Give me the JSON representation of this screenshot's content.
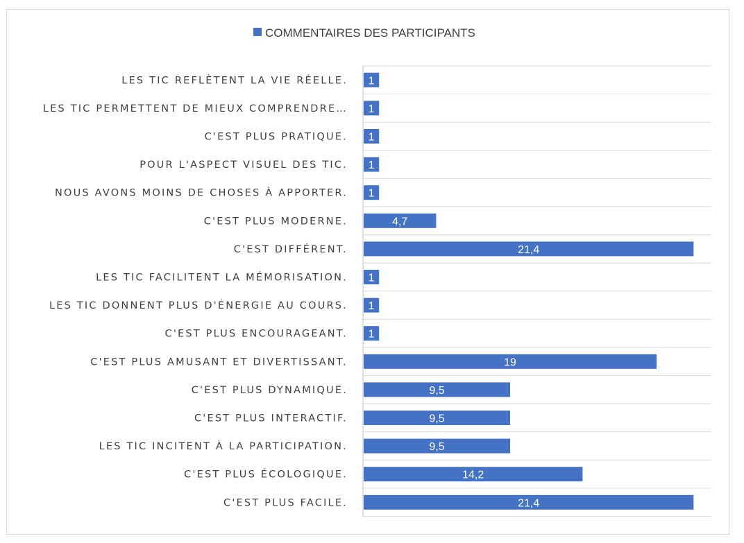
{
  "chart_data": {
    "type": "bar",
    "orientation": "horizontal",
    "title": "",
    "series": [
      {
        "name": "COMMENTAIRES DES PARTICIPANTS",
        "color": "#4472c4",
        "values": [
          1,
          1,
          1,
          1,
          1,
          4.7,
          21.4,
          1,
          1,
          1,
          19,
          9.5,
          9.5,
          9.5,
          14.2,
          21.4
        ],
        "labels": [
          "1",
          "1",
          "1",
          "1",
          "1",
          "4,7",
          "21,4",
          "1",
          "1",
          "1",
          "19",
          "9,5",
          "9,5",
          "9,5",
          "14,2",
          "21,4"
        ]
      }
    ],
    "categories": [
      "LES TIC REFLÈTENT LA VIE RÉELLE.",
      "LES TIC PERMETTENT DE MIEUX COMPRENDRE…",
      "C'EST PLUS PRATIQUE.",
      "POUR L'ASPECT VISUEL DES TIC.",
      "NOUS AVONS MOINS DE CHOSES À APPORTER.",
      "C'EST PLUS MODERNE.",
      "C'EST DIFFÉRENT.",
      "LES TIC FACILITENT LA MÉMORISATION.",
      "LES TIC DONNENT PLUS D'ÉNERGIE AU COURS.",
      "C'EST PLUS ENCOURAGEANT.",
      "C'EST PLUS AMUSANT ET DIVERTISSANT.",
      "C'EST PLUS DYNAMIQUE.",
      "C'EST PLUS INTERACTIF.",
      "LES TIC INCITENT À LA PARTICIPATION.",
      "C'EST PLUS ÉCOLOGIQUE.",
      "C'EST PLUS FACILE."
    ],
    "xlim": [
      0,
      22.6
    ],
    "grid": true,
    "legend_position": "top"
  }
}
